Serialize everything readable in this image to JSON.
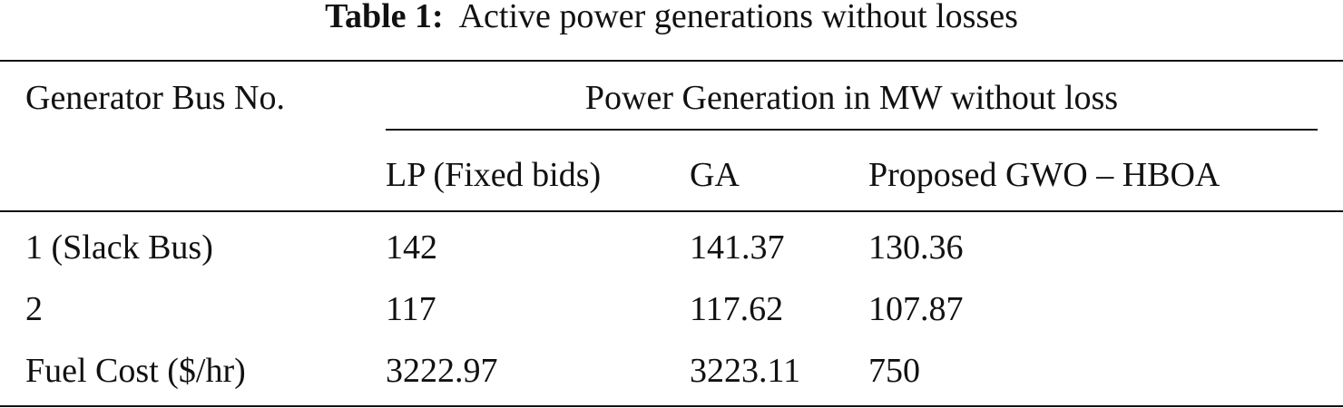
{
  "title": {
    "label": "Table 1:",
    "text": "Active power generations without losses"
  },
  "table": {
    "header": "Generator Bus No.",
    "group_header": "Power Generation in MW without loss",
    "subheaders": [
      "LP (Fixed bids)",
      "GA",
      "Proposed GWO – HBOA"
    ],
    "rows": [
      [
        "1 (Slack Bus)",
        "142",
        "141.37",
        "130.36"
      ],
      [
        "2",
        "117",
        "117.62",
        "107.87"
      ],
      [
        "Fuel Cost ($/hr)",
        "3222.97",
        "3223.11",
        "750"
      ]
    ]
  }
}
